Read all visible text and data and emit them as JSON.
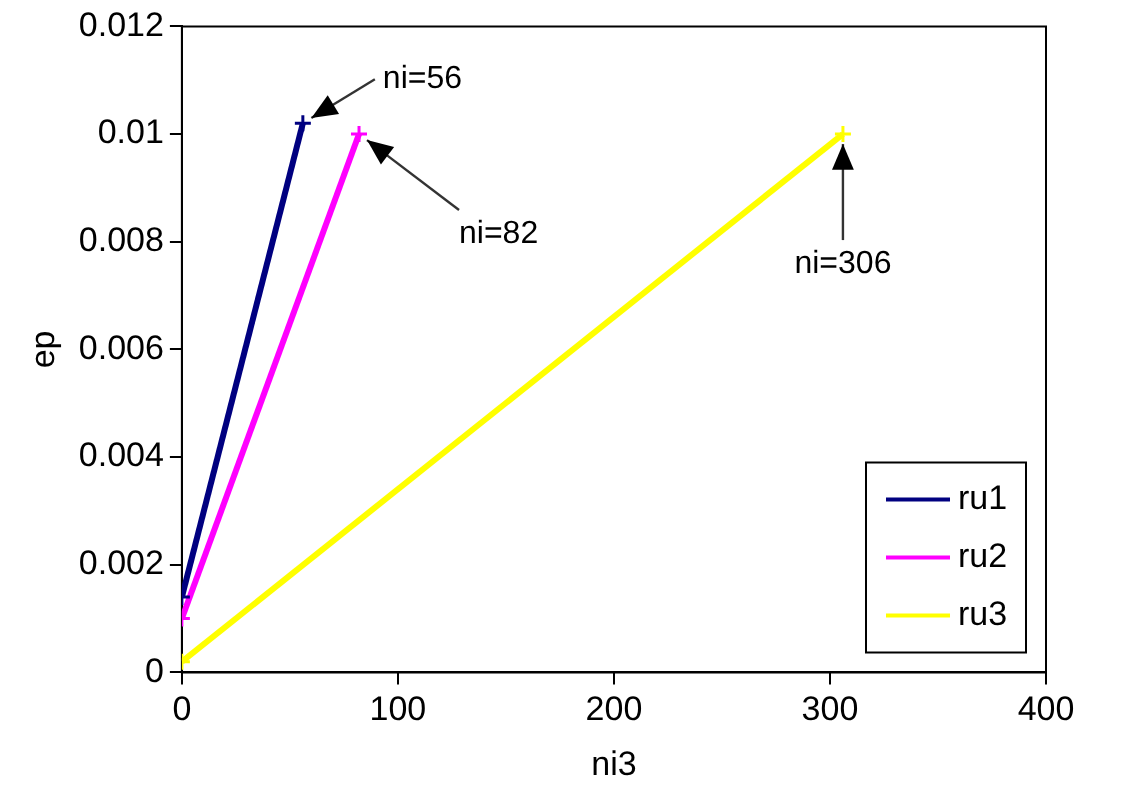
{
  "chart_data": {
    "type": "line",
    "xlabel": "ni3",
    "ylabel": "ep",
    "xlim": [
      0,
      400
    ],
    "xticks": [
      0,
      100,
      200,
      300,
      400
    ],
    "ylim": [
      0,
      0.012
    ],
    "yticks": [
      0,
      0.002,
      0.004,
      0.006,
      0.008,
      0.01,
      0.012
    ],
    "grid": false,
    "legend": "bottom right",
    "marker": "cross",
    "line_style": "solid",
    "series": [
      {
        "name": "ru1",
        "color": "#000080",
        "x": [
          0,
          56
        ],
        "values": [
          0.0014,
          0.0102
        ]
      },
      {
        "name": "ru2",
        "color": "#ff00ff",
        "x": [
          0,
          82
        ],
        "values": [
          0.001,
          0.01
        ]
      },
      {
        "name": "ru3",
        "color": "#ffff00",
        "x": [
          0,
          306
        ],
        "values": [
          0.0002,
          0.01
        ]
      }
    ],
    "annotations": [
      {
        "text": "ni=56",
        "x": 56,
        "y": 0.0102
      },
      {
        "text": "ni=82",
        "x": 82,
        "y": 0.01
      },
      {
        "text": "ni=306",
        "x": 306,
        "y": 0.01
      }
    ]
  }
}
